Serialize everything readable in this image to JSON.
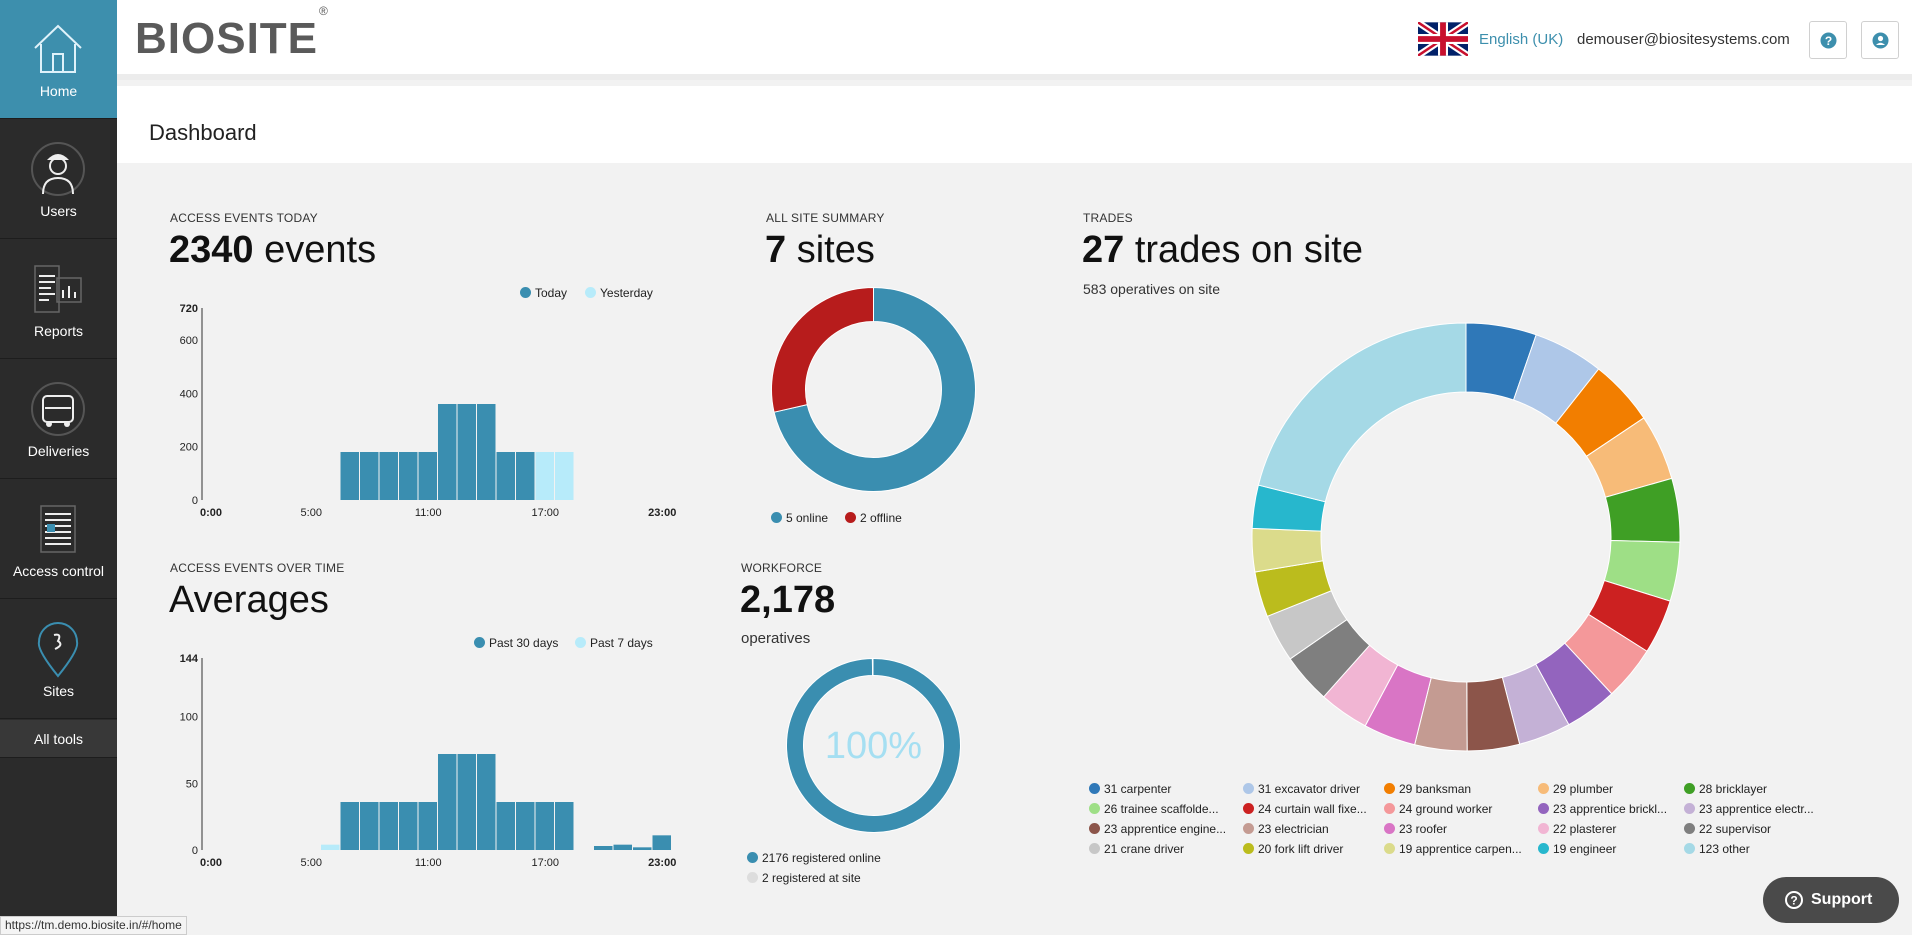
{
  "sidebar": {
    "items": [
      {
        "label": "Home"
      },
      {
        "label": "Users"
      },
      {
        "label": "Reports"
      },
      {
        "label": "Deliveries"
      },
      {
        "label": "Access control"
      },
      {
        "label": "Sites"
      }
    ],
    "all_tools": "All tools"
  },
  "header": {
    "logo_text": "BIOSITE",
    "logo_mark": "®",
    "language": "English (UK)",
    "user_email": "demouser@biositesystems.com"
  },
  "page": {
    "title": "Dashboard"
  },
  "access_today": {
    "label": "ACCESS EVENTS TODAY",
    "count": "2340",
    "unit": "events",
    "legend": [
      "Today",
      "Yesterday"
    ]
  },
  "site_summary": {
    "label": "ALL SITE SUMMARY",
    "count": "7",
    "unit": "sites",
    "legend": [
      "5 online",
      "2 offline"
    ]
  },
  "access_over_time": {
    "label": "ACCESS EVENTS OVER TIME",
    "heading": "Averages",
    "legend": [
      "Past 30 days",
      "Past 7 days"
    ]
  },
  "workforce": {
    "label": "WORKFORCE",
    "count": "2,178",
    "unit": "operatives",
    "percent_text": "100%",
    "legend": [
      "2176 registered online",
      "2 registered at site"
    ]
  },
  "trades": {
    "label": "TRADES",
    "count": "27",
    "unit": "trades on site",
    "sub": "583 operatives on site",
    "legend": [
      "31 carpenter",
      "31 excavator driver",
      "29 banksman",
      "29 plumber",
      "28 bricklayer",
      "26 trainee scaffolde...",
      "24 curtain wall fixe...",
      "24 ground worker",
      "23 apprentice brickl...",
      "23 apprentice electr...",
      "23 apprentice engine...",
      "23 electrician",
      "23 roofer",
      "22 plasterer",
      "22 supervisor",
      "21 crane driver",
      "20 fork lift driver",
      "19 apprentice carpen...",
      "19 engineer",
      "123 other"
    ]
  },
  "chart_data": [
    {
      "type": "bar",
      "title": "ACCESS EVENTS TODAY",
      "x_ticks": [
        "0:00",
        "5:00",
        "11:00",
        "17:00",
        "23:00"
      ],
      "ytick_labels": [
        "0",
        "200",
        "400",
        "600",
        "720"
      ],
      "ylim": [
        0,
        720
      ],
      "categories": [
        "0",
        "1",
        "2",
        "3",
        "4",
        "5",
        "6",
        "7",
        "8",
        "9",
        "10",
        "11",
        "12",
        "13",
        "14",
        "15",
        "16",
        "17",
        "18",
        "19",
        "20",
        "21",
        "22",
        "23"
      ],
      "series": [
        {
          "name": "Today",
          "color": "#3a8eb0",
          "values": [
            0,
            0,
            0,
            0,
            0,
            0,
            0,
            180,
            180,
            180,
            180,
            180,
            360,
            360,
            360,
            180,
            180,
            0,
            0,
            0,
            0,
            0,
            0,
            0
          ]
        },
        {
          "name": "Yesterday",
          "color": "#b7ebfa",
          "values": [
            0,
            0,
            0,
            0,
            0,
            0,
            0,
            180,
            180,
            180,
            180,
            180,
            360,
            360,
            360,
            180,
            180,
            180,
            180,
            0,
            0,
            0,
            0,
            0
          ]
        }
      ]
    },
    {
      "type": "pie",
      "title": "ALL SITE SUMMARY",
      "donut": true,
      "labels": [
        "5 online",
        "2 offline"
      ],
      "values": [
        5,
        2
      ],
      "colors": [
        "#3a8eb0",
        "#b71c1c"
      ]
    },
    {
      "type": "bar",
      "title": "ACCESS EVENTS OVER TIME - Averages",
      "x_ticks": [
        "0:00",
        "5:00",
        "11:00",
        "17:00",
        "23:00"
      ],
      "ytick_labels": [
        "0",
        "50",
        "100",
        "144"
      ],
      "ylim": [
        0,
        144
      ],
      "categories": [
        "0",
        "1",
        "2",
        "3",
        "4",
        "5",
        "6",
        "7",
        "8",
        "9",
        "10",
        "11",
        "12",
        "13",
        "14",
        "15",
        "16",
        "17",
        "18",
        "19",
        "20",
        "21",
        "22",
        "23"
      ],
      "series": [
        {
          "name": "Past 30 days",
          "color": "#3a8eb0",
          "values": [
            0,
            0,
            0,
            0,
            0,
            0,
            0,
            36,
            36,
            36,
            36,
            36,
            72,
            72,
            72,
            36,
            36,
            36,
            36,
            0,
            3,
            4,
            2,
            11
          ]
        },
        {
          "name": "Past 7 days",
          "color": "#b7ebfa",
          "values": [
            0,
            0,
            0,
            0,
            0,
            0,
            4,
            36,
            36,
            36,
            36,
            36,
            72,
            72,
            72,
            36,
            36,
            36,
            36,
            0,
            0,
            0,
            0,
            0
          ]
        }
      ]
    },
    {
      "type": "pie",
      "title": "WORKFORCE",
      "donut": true,
      "labels": [
        "2176 registered online",
        "2 registered at site"
      ],
      "values": [
        2176,
        2
      ],
      "colors": [
        "#3a8eb0",
        "#dddddd"
      ],
      "center_label": "100%"
    },
    {
      "type": "pie",
      "title": "TRADES",
      "donut": true,
      "labels": [
        "carpenter",
        "excavator driver",
        "banksman",
        "plumber",
        "bricklayer",
        "trainee scaffolder",
        "curtain wall fixer",
        "ground worker",
        "apprentice bricklayer",
        "apprentice electrician",
        "apprentice engineer",
        "electrician",
        "roofer",
        "plasterer",
        "supervisor",
        "crane driver",
        "fork lift driver",
        "apprentice carpenter",
        "engineer",
        "other"
      ],
      "values": [
        31,
        31,
        29,
        29,
        28,
        26,
        24,
        24,
        23,
        23,
        23,
        23,
        23,
        22,
        22,
        21,
        20,
        19,
        19,
        123
      ],
      "colors": [
        "#2f78b8",
        "#aec7e8",
        "#f27e00",
        "#f7bb78",
        "#3f9f25",
        "#9edf86",
        "#cc2121",
        "#f4989a",
        "#9364be",
        "#c4b1d6",
        "#8c554a",
        "#c49b92",
        "#d975c5",
        "#f1b5d3",
        "#7f7f7f",
        "#c7c7c7",
        "#bbbc1d",
        "#dbdb8b",
        "#27b7cd",
        "#a5d9e6"
      ]
    }
  ]
}
